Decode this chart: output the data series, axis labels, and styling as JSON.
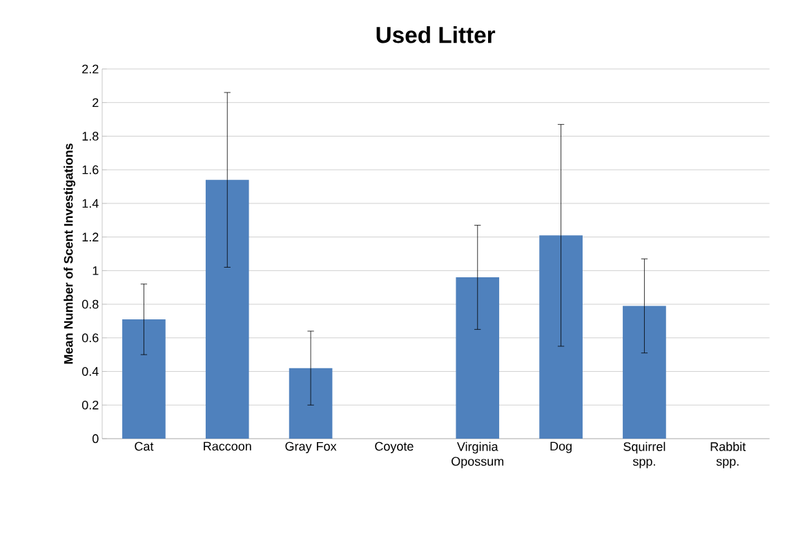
{
  "chart_data": {
    "type": "bar",
    "title": "Used Litter",
    "ylabel": "Mean Number of Scent Investigations",
    "categories": [
      "Cat",
      "Raccoon",
      "Gray Fox",
      "Coyote",
      "Virginia Opossum",
      "Dog",
      "Squirrel spp.",
      "Rabbit spp."
    ],
    "values": [
      0.71,
      1.54,
      0.42,
      0,
      0.96,
      1.21,
      0.79,
      0
    ],
    "errors": [
      0.21,
      0.52,
      0.22,
      null,
      0.31,
      0.66,
      0.28,
      null
    ],
    "color": "#4f81bd",
    "ylim": [
      0,
      2.2
    ],
    "yticks": [
      0,
      0.2,
      0.4,
      0.6,
      0.8,
      1,
      1.2,
      1.4,
      1.6,
      1.8,
      2,
      2.2
    ],
    "grid": "y"
  }
}
